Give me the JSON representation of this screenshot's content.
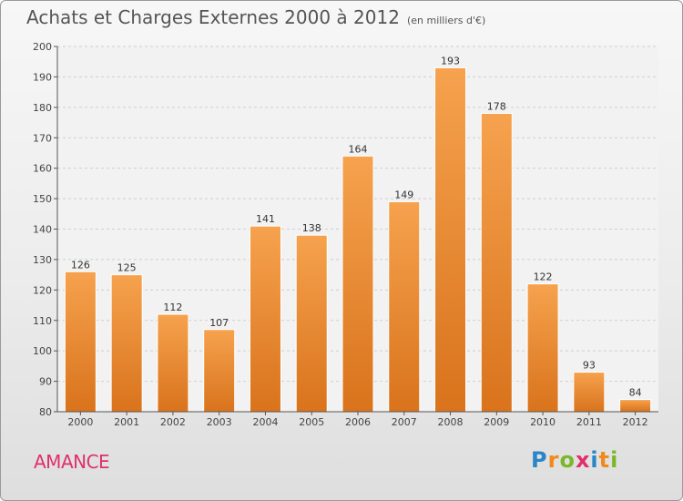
{
  "header": {
    "title": "Achats et Charges Externes 2000 à 2012",
    "subtitle": "(en milliers d'€)"
  },
  "commune": "AMANCE",
  "logo": {
    "letters": [
      "P",
      "r",
      "o",
      "x",
      "i",
      "t",
      "i"
    ],
    "colors": [
      "#2a86c7",
      "#f08a1c",
      "#7ab829",
      "#e0306a",
      "#2a86c7",
      "#f08a1c",
      "#7ab829"
    ]
  },
  "chart_data": {
    "type": "bar",
    "categories": [
      "2000",
      "2001",
      "2002",
      "2003",
      "2004",
      "2005",
      "2006",
      "2007",
      "2008",
      "2009",
      "2010",
      "2011",
      "2012"
    ],
    "values": [
      126,
      125,
      112,
      107,
      141,
      138,
      164,
      149,
      193,
      178,
      122,
      93,
      84
    ],
    "title": "Achats et Charges Externes 2000 à 2012",
    "xlabel": "",
    "ylabel": "",
    "ylim": [
      80,
      200
    ],
    "yticks": [
      80,
      90,
      100,
      110,
      120,
      130,
      140,
      150,
      160,
      170,
      180,
      190,
      200
    ],
    "grid": true,
    "bar_color": "#f0882e"
  }
}
